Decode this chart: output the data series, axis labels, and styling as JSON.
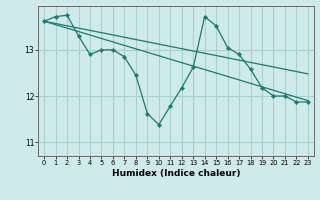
{
  "background_color": "#ceeaea",
  "grid_color": "#aacfcf",
  "line_color": "#1a7a6e",
  "xlabel": "Humidex (Indice chaleur)",
  "xlim": [
    -0.5,
    23.5
  ],
  "ylim": [
    10.7,
    13.95
  ],
  "yticks": [
    11,
    12,
    13
  ],
  "xticks": [
    0,
    1,
    2,
    3,
    4,
    5,
    6,
    7,
    8,
    9,
    10,
    11,
    12,
    13,
    14,
    15,
    16,
    17,
    18,
    19,
    20,
    21,
    22,
    23
  ],
  "straight_line1": {
    "x": [
      0,
      23
    ],
    "y": [
      13.62,
      12.48
    ]
  },
  "straight_line2": {
    "x": [
      0,
      23
    ],
    "y": [
      13.62,
      11.9
    ]
  },
  "zigzag": {
    "x": [
      0,
      1,
      2,
      3,
      4,
      5,
      6,
      7,
      8,
      9,
      10,
      11,
      12,
      13,
      14,
      15,
      16,
      17,
      18,
      19,
      20,
      21,
      22,
      23
    ],
    "y": [
      13.62,
      13.72,
      13.75,
      13.3,
      12.9,
      13.0,
      13.0,
      12.85,
      12.45,
      11.62,
      11.38,
      11.78,
      12.18,
      12.62,
      13.72,
      13.52,
      13.05,
      12.9,
      12.58,
      12.18,
      12.0,
      12.0,
      11.87,
      11.87
    ]
  }
}
